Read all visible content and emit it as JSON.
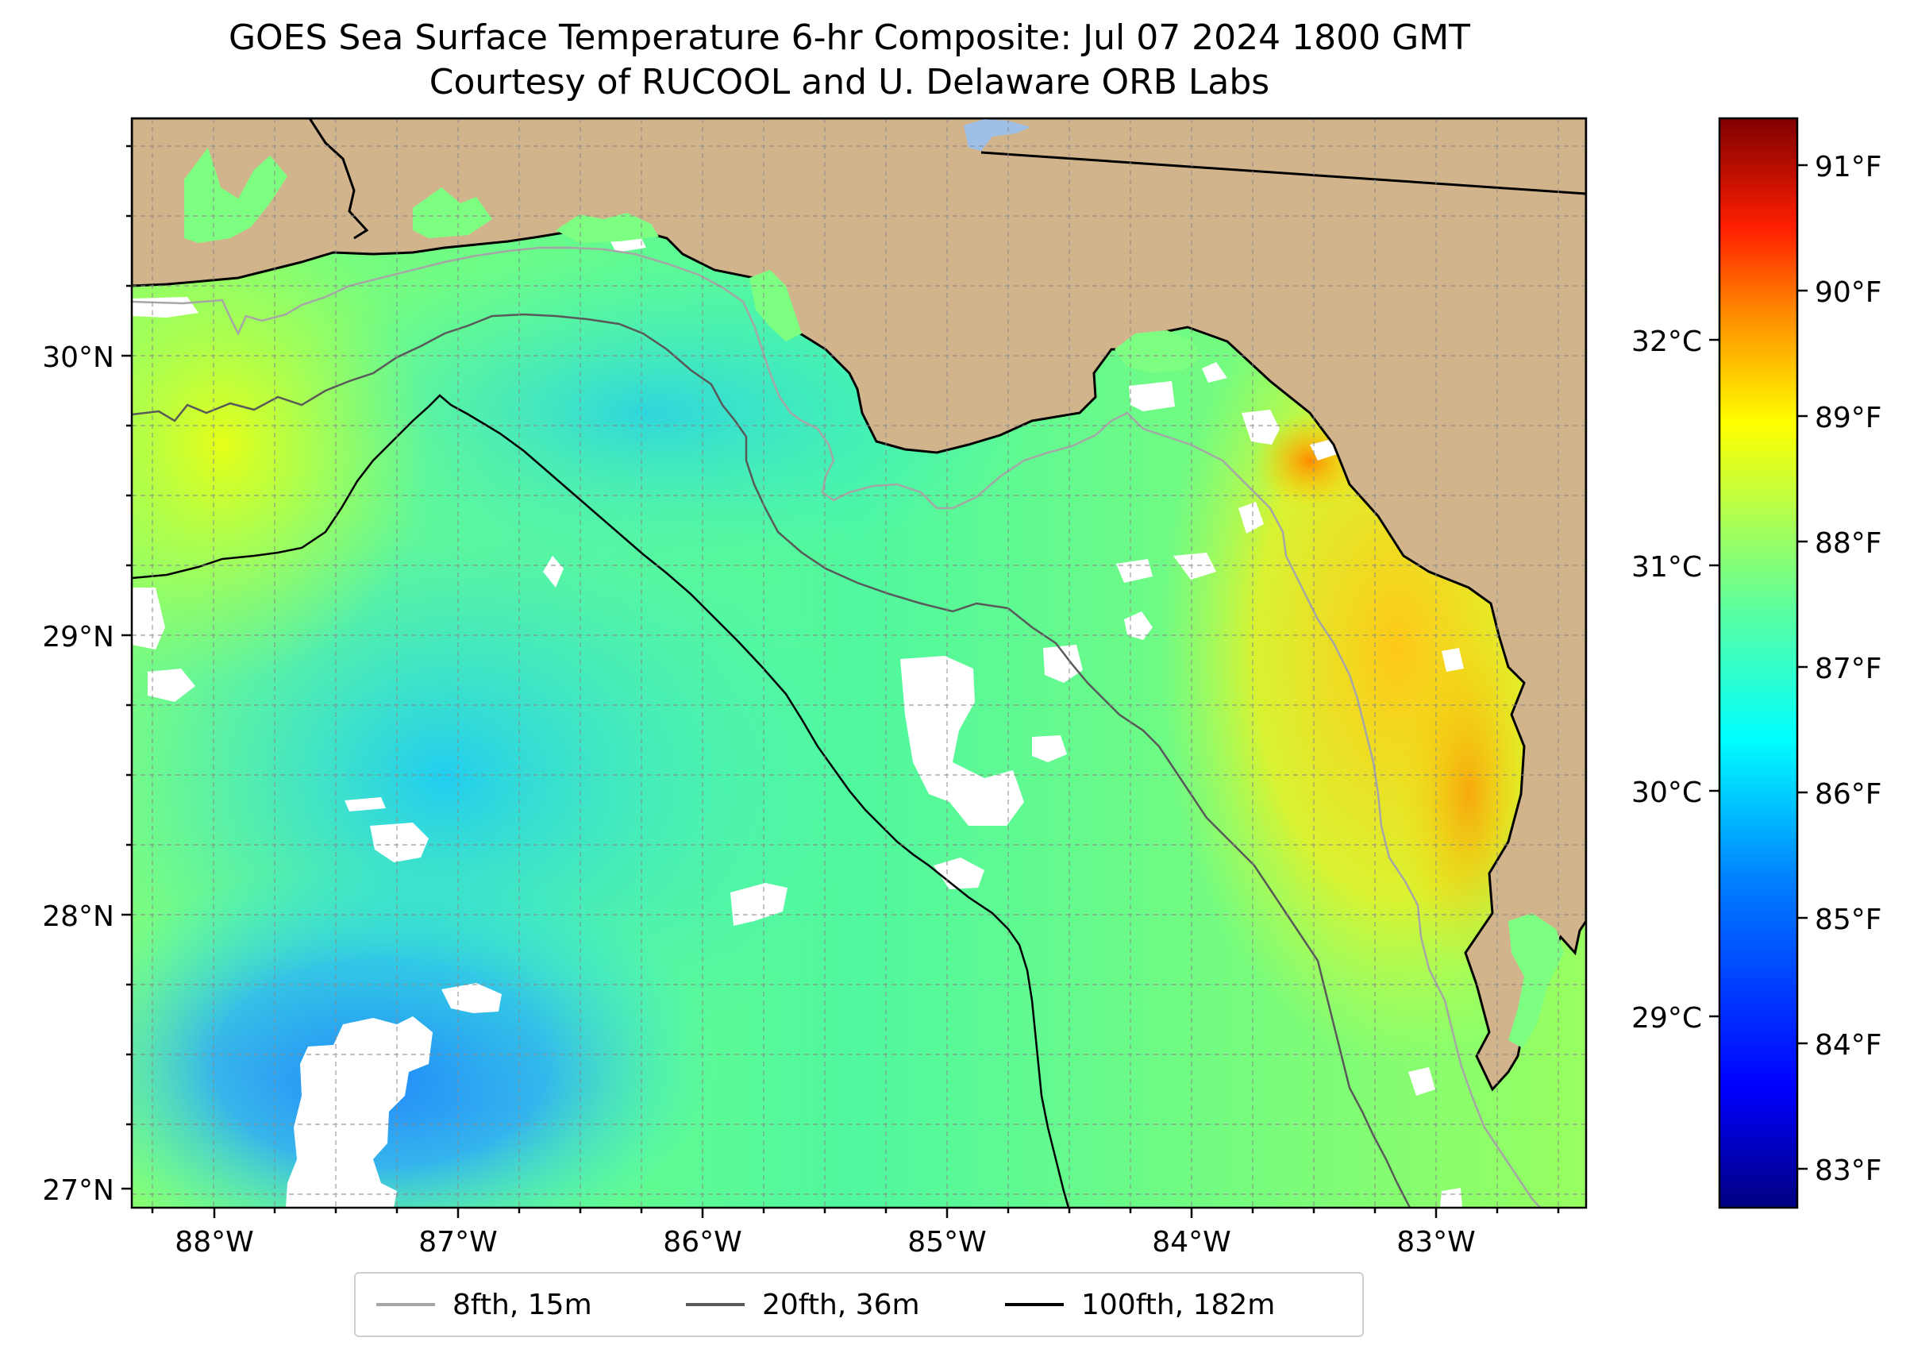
{
  "title_line1": "GOES Sea Surface Temperature 6-hr Composite: Jul 07 2024 1800 GMT",
  "title_line2": "Courtesy of RUCOOL and U. Delaware ORB Labs",
  "map": {
    "lon_ticks": [
      "88°W",
      "87°W",
      "86°W",
      "85°W",
      "84°W",
      "83°W"
    ],
    "lat_ticks": [
      "30°N",
      "29°N",
      "28°N",
      "27°N"
    ],
    "land_color": "#d2b48c",
    "cloud_color": "#ffffff"
  },
  "colorbar": {
    "celsius_ticks": [
      "32°C",
      "31°C",
      "30°C",
      "29°C"
    ],
    "fahrenheit_ticks": [
      "91°F",
      "90°F",
      "89°F",
      "88°F",
      "87°F",
      "86°F",
      "85°F",
      "84°F",
      "83°F"
    ],
    "colormap": [
      "#00007f",
      "#0000ff",
      "#007fff",
      "#00ffff",
      "#7fff7f",
      "#ffff00",
      "#ff7f00",
      "#ff0000",
      "#7f0000"
    ]
  },
  "legend": [
    {
      "label": "8fth, 15m",
      "color": "#a6a6a6"
    },
    {
      "label": "20fth, 36m",
      "color": "#595959"
    },
    {
      "label": "100fth, 182m",
      "color": "#000000"
    }
  ]
}
